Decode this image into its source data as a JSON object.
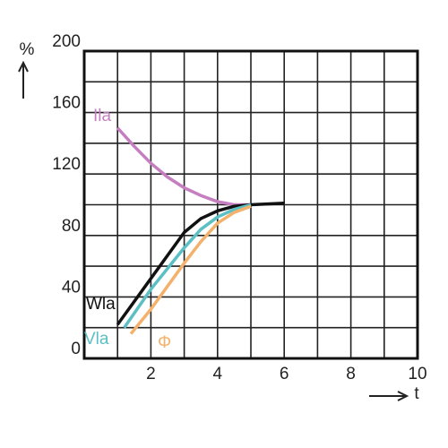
{
  "chart_data": {
    "type": "line",
    "x_label": "t",
    "y_label": "%",
    "xlim": [
      0,
      10
    ],
    "ylim": [
      0,
      200
    ],
    "xticks": [
      2,
      4,
      6,
      8,
      10
    ],
    "yticks": [
      0,
      40,
      80,
      120,
      160,
      200
    ],
    "xgrid": [
      0,
      1,
      2,
      3,
      4,
      5,
      6,
      7,
      8,
      9,
      10
    ],
    "ygrid": [
      0,
      20,
      40,
      60,
      80,
      100,
      120,
      140,
      160,
      180,
      200
    ],
    "grid": true,
    "series": [
      {
        "name": "Ila",
        "color": "#c57fc0",
        "x": [
          1,
          1.5,
          2,
          2.5,
          3,
          3.5,
          4,
          4.5,
          5
        ],
        "values": [
          150,
          138,
          127,
          118,
          111,
          106,
          102,
          100,
          100
        ]
      },
      {
        "name": "Wla",
        "color": "#111111",
        "x": [
          1,
          2,
          3,
          3.5,
          4,
          4.5,
          5,
          6
        ],
        "values": [
          22,
          52,
          82,
          91,
          96,
          99,
          100,
          101
        ]
      },
      {
        "name": "Vla",
        "color": "#5bbfc3",
        "x": [
          1.2,
          2,
          3,
          3.5,
          4,
          4.5,
          5
        ],
        "values": [
          20,
          45,
          72,
          84,
          92,
          97,
          100
        ]
      },
      {
        "name": "Φ",
        "color": "#f3b16c",
        "x": [
          1.4,
          2,
          3,
          3.5,
          4,
          4.5,
          5
        ],
        "values": [
          16,
          32,
          62,
          76,
          88,
          95,
          99
        ]
      }
    ]
  }
}
